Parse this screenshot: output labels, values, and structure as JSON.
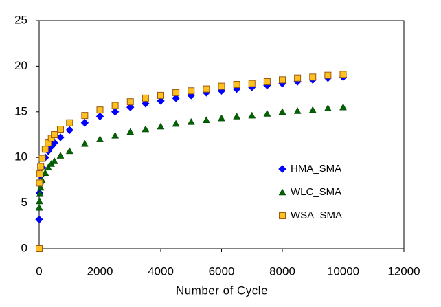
{
  "chart_data": {
    "type": "scatter",
    "xlabel": "Number of  Cycle",
    "x": [
      0,
      10,
      25,
      50,
      100,
      200,
      300,
      400,
      500,
      700,
      1000,
      1500,
      2000,
      2500,
      3000,
      3500,
      4000,
      4500,
      5000,
      5500,
      6000,
      6500,
      7000,
      7500,
      8000,
      8500,
      9000,
      9500,
      10000
    ],
    "series": [
      {
        "name": "HMA_SMA",
        "color": "#0000ff",
        "marker": "diamond",
        "values": [
          3.2,
          6.1,
          7.1,
          8.0,
          8.9,
          10.0,
          10.7,
          11.2,
          11.6,
          12.2,
          13.0,
          13.8,
          14.5,
          15.0,
          15.5,
          15.9,
          16.2,
          16.5,
          16.8,
          17.1,
          17.3,
          17.5,
          17.7,
          17.9,
          18.1,
          18.3,
          18.5,
          18.7,
          18.8
        ]
      },
      {
        "name": "WLC_SMA",
        "color": "#006400",
        "marker": "triangle",
        "values": [
          4.5,
          5.2,
          6.0,
          6.7,
          7.5,
          8.3,
          8.9,
          9.3,
          9.6,
          10.2,
          10.7,
          11.5,
          12.0,
          12.4,
          12.8,
          13.1,
          13.4,
          13.7,
          13.9,
          14.1,
          14.3,
          14.5,
          14.6,
          14.8,
          15.0,
          15.1,
          15.2,
          15.4,
          15.5
        ]
      },
      {
        "name": "WSA_SMA",
        "color": "#ffc020",
        "marker": "square",
        "values": [
          0,
          7.2,
          8.2,
          9.0,
          9.9,
          10.9,
          11.6,
          12.1,
          12.5,
          13.1,
          13.8,
          14.6,
          15.2,
          15.7,
          16.1,
          16.5,
          16.8,
          17.1,
          17.3,
          17.5,
          17.8,
          18.0,
          18.1,
          18.3,
          18.5,
          18.7,
          18.8,
          19.0,
          19.1
        ]
      }
    ],
    "xlim": [
      0,
      12000
    ],
    "xticks": [
      0,
      2000,
      4000,
      6000,
      8000,
      10000,
      12000
    ],
    "ylim": [
      0,
      25
    ],
    "yticks": [
      0,
      5,
      10,
      15,
      20,
      25
    ],
    "legend": "right"
  }
}
